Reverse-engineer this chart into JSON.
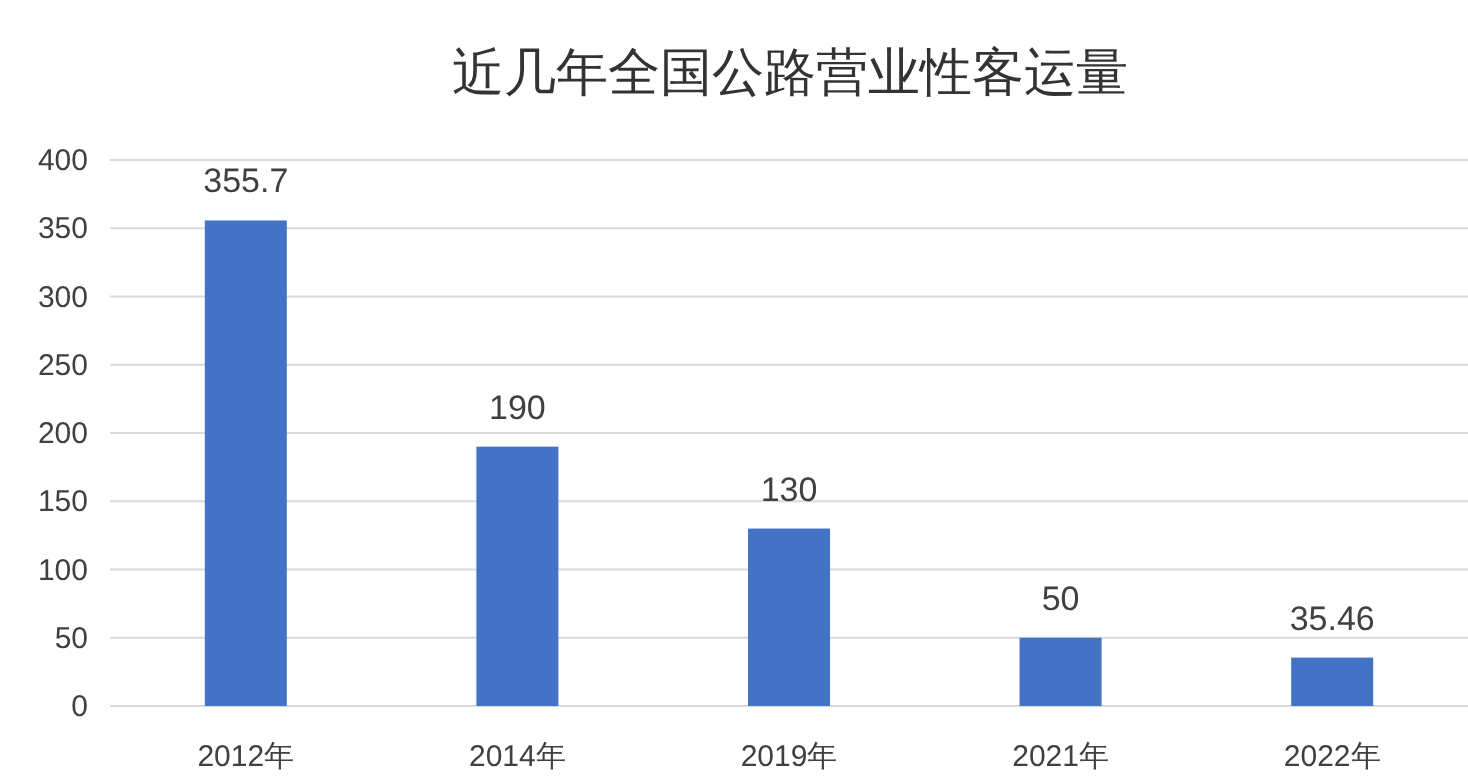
{
  "chart_data": {
    "type": "bar",
    "title": "近几年全国公路营业性客运量",
    "categories": [
      "2012年",
      "2014年",
      "2019年",
      "2021年",
      "2022年"
    ],
    "values": [
      355.7,
      190,
      130,
      50,
      35.46
    ],
    "color": "#4472c4",
    "ylim": [
      0,
      400
    ],
    "yticks": [
      0,
      50,
      100,
      150,
      200,
      250,
      300,
      350,
      400
    ],
    "grid": "y",
    "data_labels": true
  }
}
